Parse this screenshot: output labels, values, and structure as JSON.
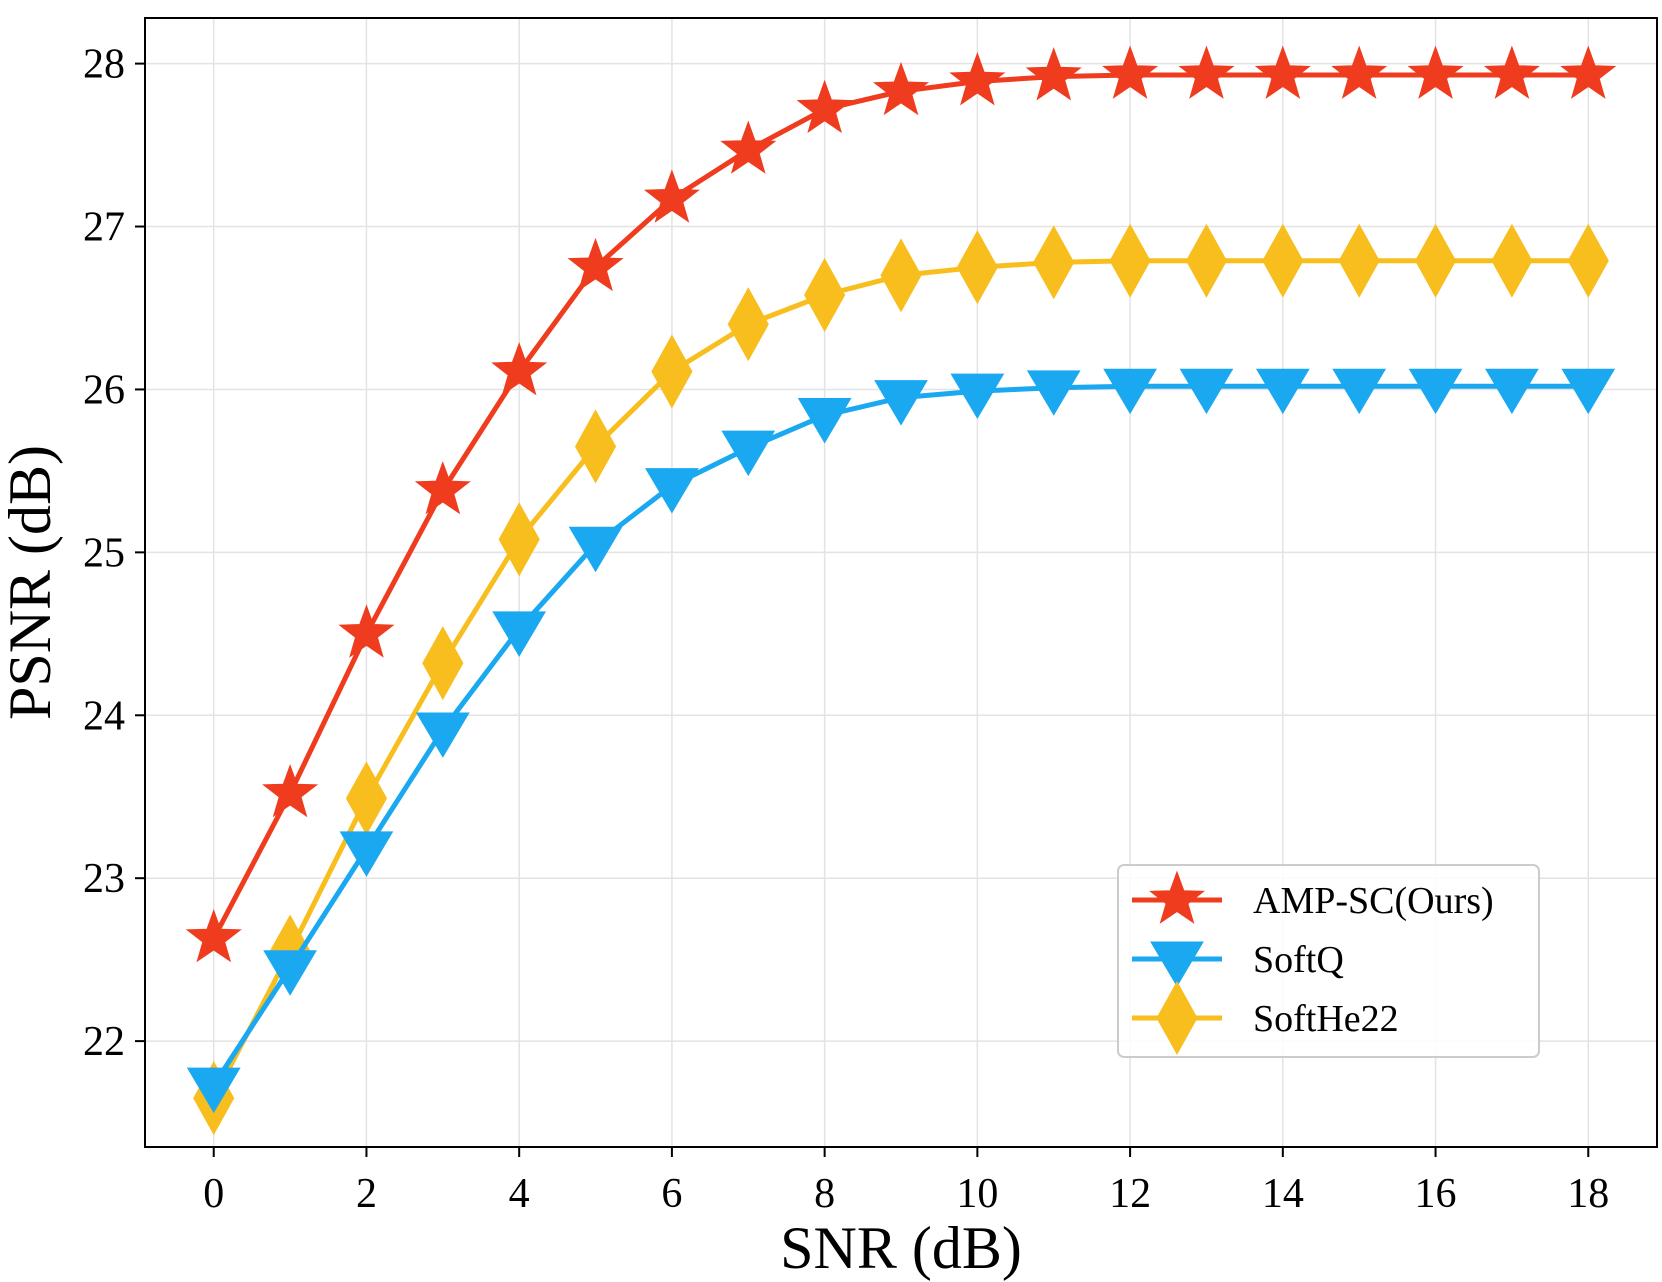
{
  "chart_data": {
    "type": "line",
    "title": "",
    "xlabel": "SNR (dB)",
    "ylabel": "PSNR (dB)",
    "x": [
      0,
      1,
      2,
      3,
      4,
      5,
      6,
      7,
      8,
      9,
      10,
      11,
      12,
      13,
      14,
      15,
      16,
      17,
      18
    ],
    "xlim": [
      -0.9,
      18.9
    ],
    "ylim": [
      21.35,
      28.28
    ],
    "xticks": [
      0,
      2,
      4,
      6,
      8,
      10,
      12,
      14,
      16,
      18
    ],
    "xtick_labels": [
      "0",
      "2",
      "4",
      "6",
      "8",
      "10",
      "12",
      "14",
      "16",
      "18"
    ],
    "yticks": [
      22,
      23,
      24,
      25,
      26,
      27,
      28
    ],
    "ytick_labels": [
      "22",
      "23",
      "24",
      "25",
      "26",
      "27",
      "28"
    ],
    "grid": true,
    "legend_position": "lower-right",
    "series": [
      {
        "name": "AMP-SC(Ours)",
        "marker": "star",
        "color": "#F03C1E",
        "values": [
          22.63,
          23.52,
          24.5,
          25.38,
          26.11,
          26.75,
          27.17,
          27.47,
          27.72,
          27.83,
          27.89,
          27.92,
          27.93,
          27.93,
          27.93,
          27.93,
          27.93,
          27.93,
          27.93
        ]
      },
      {
        "name": "SoftQ",
        "marker": "triangle-down",
        "color": "#1AA9F0",
        "values": [
          21.73,
          22.45,
          23.18,
          23.91,
          24.53,
          25.05,
          25.41,
          25.64,
          25.84,
          25.95,
          25.99,
          26.01,
          26.02,
          26.02,
          26.02,
          26.02,
          26.02,
          26.02,
          26.02
        ]
      },
      {
        "name": "SoftHe22",
        "marker": "diamond",
        "color": "#F8BE1E",
        "values": [
          21.65,
          22.55,
          23.49,
          24.32,
          25.08,
          25.65,
          26.11,
          26.4,
          26.58,
          26.7,
          26.75,
          26.78,
          26.79,
          26.79,
          26.79,
          26.79,
          26.79,
          26.79,
          26.79
        ]
      }
    ]
  }
}
